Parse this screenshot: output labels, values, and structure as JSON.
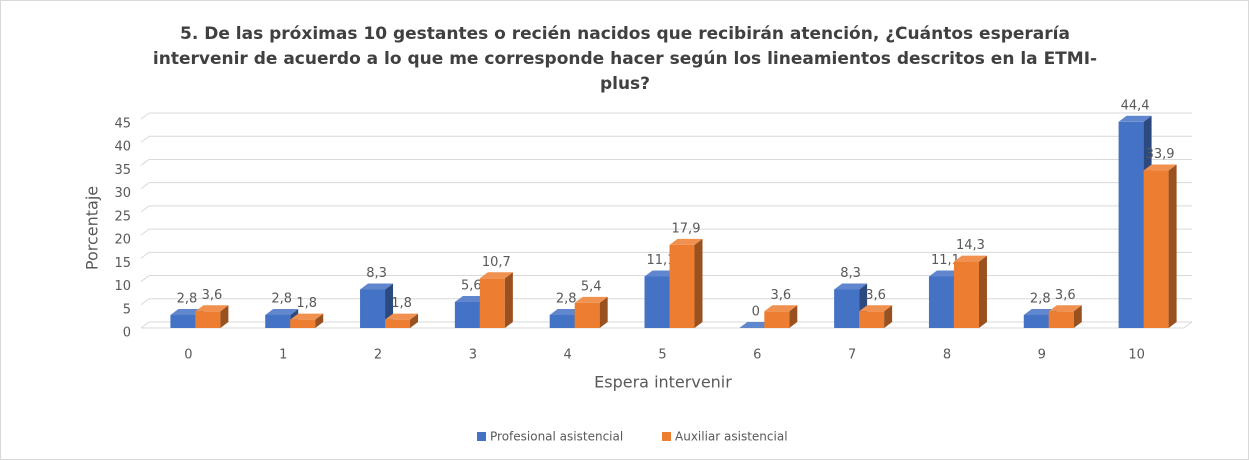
{
  "chart_data": {
    "type": "bar3d",
    "title": "5. De las próximas 10 gestantes o recién nacidos que recibirán atención, ¿Cuántos esperaría intervenir de acuerdo a lo que me corresponde hacer según los lineamientos descritos en la ETMI-plus?",
    "x_label": "Espera intervenir",
    "y_label": "Porcentaje",
    "categories": [
      "0",
      "1",
      "2",
      "3",
      "4",
      "5",
      "6",
      "7",
      "8",
      "9",
      "10"
    ],
    "series": [
      {
        "name": "Profesional asistencial",
        "color": "#4472c4",
        "values": [
          2.8,
          2.8,
          8.3,
          5.6,
          2.8,
          11.1,
          0,
          8.3,
          11.1,
          2.8,
          44.4
        ],
        "value_labels": [
          "2,8",
          "2,8",
          "8,3",
          "5,6",
          "2,8",
          "11,1",
          "0",
          "8,3",
          "11,1",
          "2,8",
          "44,4"
        ]
      },
      {
        "name": "Auxiliar asistencial",
        "color": "#ed7d31",
        "values": [
          3.6,
          1.8,
          1.8,
          10.7,
          5.4,
          17.9,
          3.6,
          3.6,
          14.3,
          3.6,
          33.9
        ],
        "value_labels": [
          "3,6",
          "1,8",
          "1,8",
          "10,7",
          "5,4",
          "17,9",
          "3,6",
          "3,6",
          "14,3",
          "3,6",
          "33,9"
        ]
      }
    ],
    "ylim": [
      0,
      45
    ],
    "yticks": [
      0,
      5,
      10,
      15,
      20,
      25,
      30,
      35,
      40,
      45
    ],
    "grid": true,
    "legend": "bottom"
  }
}
